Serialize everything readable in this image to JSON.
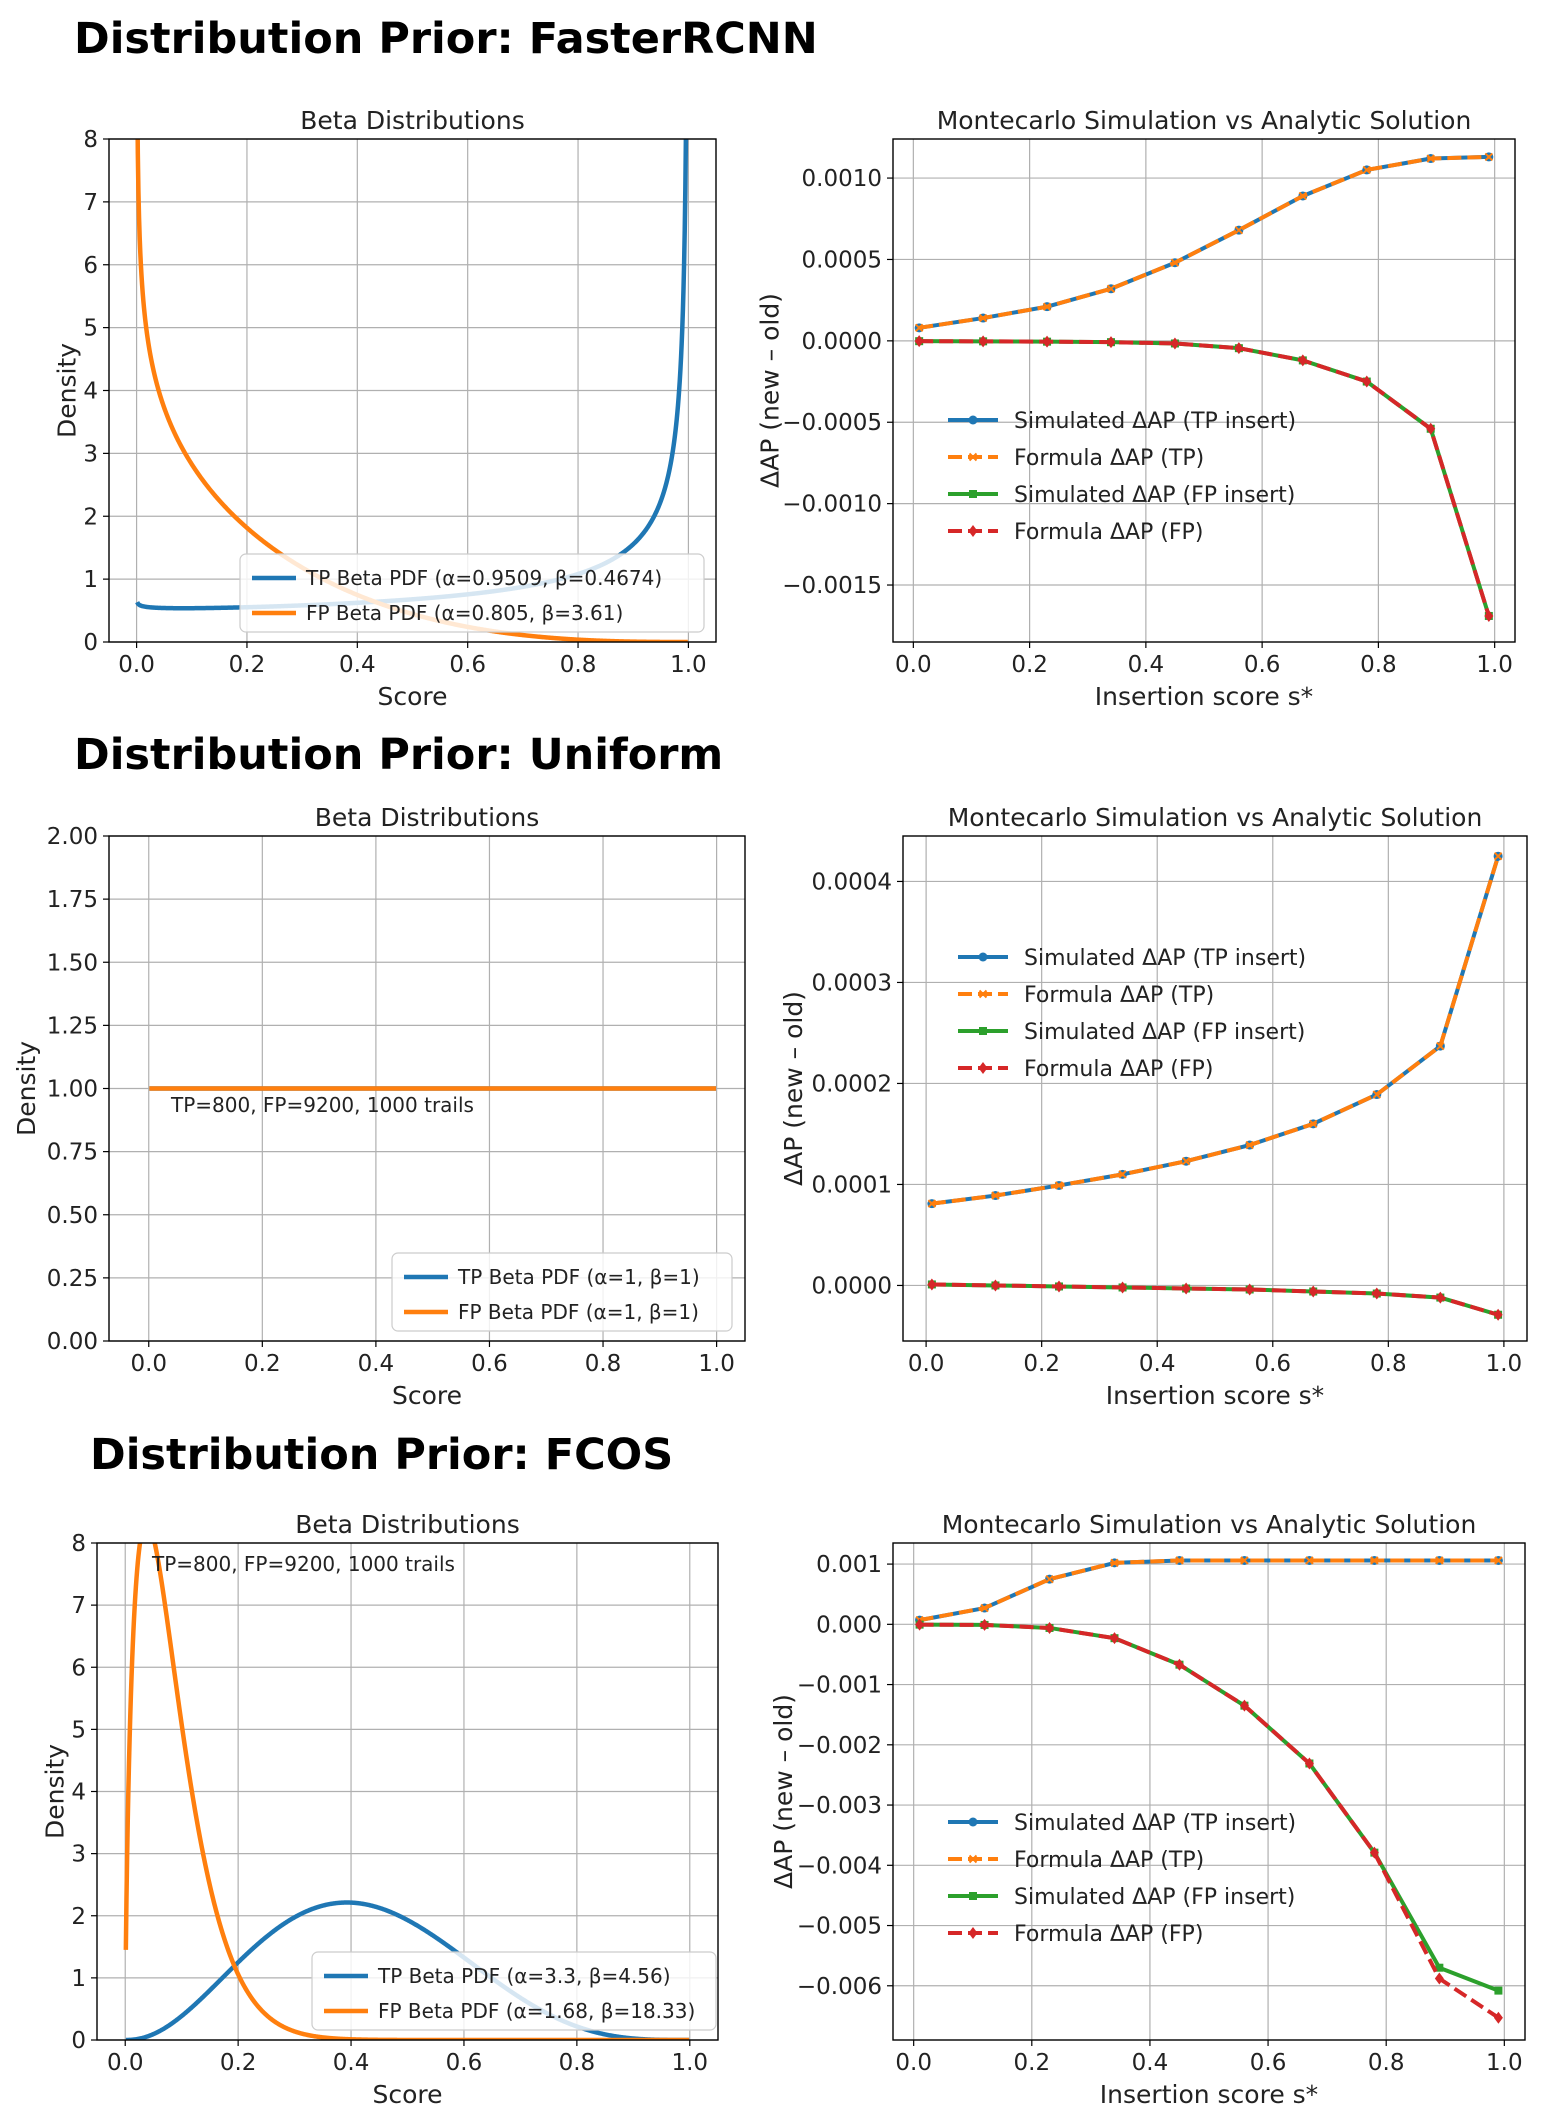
{
  "sections": [
    {
      "title": "Distribution Prior: FasterRCNN"
    },
    {
      "title": "Distribution Prior: Uniform"
    },
    {
      "title": "Distribution Prior: FCOS"
    }
  ],
  "colors": {
    "tp": "#1f77b4",
    "fp": "#ff7f0e",
    "sim_fp": "#2ca02c",
    "formula_fp": "#d62728"
  },
  "chart_data": [
    {
      "id": "frcnn-beta",
      "type": "line",
      "kind": "beta",
      "title": "Beta Distributions",
      "xlabel": "Score",
      "ylabel": "Density",
      "xlim": [
        -0.05,
        1.05
      ],
      "ylim": [
        0,
        8
      ],
      "xticks": [
        0.0,
        0.2,
        0.4,
        0.6,
        0.8,
        1.0
      ],
      "xtick_labels": [
        "0.0",
        "0.2",
        "0.4",
        "0.6",
        "0.8",
        "1.0"
      ],
      "yticks": [
        0,
        1,
        2,
        3,
        4,
        5,
        6,
        7,
        8
      ],
      "ytick_labels": [
        "0",
        "1",
        "2",
        "3",
        "4",
        "5",
        "6",
        "7",
        "8"
      ],
      "grid": true,
      "legend_position": "lower-right",
      "series": [
        {
          "name": "TP Beta PDF (α=0.9509, β=0.4674)",
          "alpha": 0.9509,
          "beta": 0.4674,
          "color": "#1f77b4"
        },
        {
          "name": "FP Beta PDF (α=0.805, β=3.61)",
          "alpha": 0.805,
          "beta": 3.61,
          "color": "#ff7f0e"
        }
      ]
    },
    {
      "id": "frcnn-mc",
      "type": "line",
      "kind": "mc",
      "title": "Montecarlo Simulation vs Analytic Solution",
      "xlabel": "Insertion score s*",
      "ylabel": "ΔAP (new – old)",
      "xlim": [
        -0.035,
        1.035
      ],
      "ylim": [
        -0.00185,
        0.00124
      ],
      "xticks": [
        0.0,
        0.2,
        0.4,
        0.6,
        0.8,
        1.0
      ],
      "xtick_labels": [
        "0.0",
        "0.2",
        "0.4",
        "0.6",
        "0.8",
        "1.0"
      ],
      "yticks": [
        -0.0015,
        -0.001,
        -0.0005,
        0,
        0.0005,
        0.001
      ],
      "ytick_labels": [
        "−0.0015",
        "−0.0010",
        "−0.0005",
        "0.0000",
        "0.0005",
        "0.0010"
      ],
      "grid": true,
      "legend_position": "center-left",
      "x": [
        0.01,
        0.12,
        0.23,
        0.34,
        0.45,
        0.56,
        0.67,
        0.78,
        0.89,
        0.99
      ],
      "series": [
        {
          "name": "Simulated ΔAP (TP insert)",
          "color": "#1f77b4",
          "style": "solid",
          "marker": "circle",
          "values": [
            8e-05,
            0.00014,
            0.00021,
            0.00032,
            0.00048,
            0.00068,
            0.00089,
            0.00105,
            0.00112,
            0.00113
          ]
        },
        {
          "name": "Formula ΔAP (TP)",
          "color": "#ff7f0e",
          "style": "dashed",
          "marker": "x",
          "values": [
            8e-05,
            0.00014,
            0.00021,
            0.00032,
            0.00048,
            0.00068,
            0.00089,
            0.00105,
            0.00112,
            0.00113
          ]
        },
        {
          "name": "Simulated ΔAP (FP insert)",
          "color": "#2ca02c",
          "style": "solid",
          "marker": "square",
          "values": [
            -2e-06,
            -3e-06,
            -5e-06,
            -8e-06,
            -1.6e-05,
            -4.5e-05,
            -0.00012,
            -0.00025,
            -0.00054,
            -0.00169
          ]
        },
        {
          "name": "Formula ΔAP (FP)",
          "color": "#d62728",
          "style": "dashed",
          "marker": "diamond",
          "values": [
            -2e-06,
            -3e-06,
            -5e-06,
            -8e-06,
            -1.6e-05,
            -4.5e-05,
            -0.00012,
            -0.00025,
            -0.00054,
            -0.00169
          ]
        }
      ]
    },
    {
      "id": "uni-beta",
      "type": "line",
      "kind": "beta",
      "title": "Beta Distributions",
      "xlabel": "Score",
      "ylabel": "Density",
      "xlim": [
        -0.07,
        1.05
      ],
      "ylim": [
        0,
        2
      ],
      "xticks": [
        0.0,
        0.2,
        0.4,
        0.6,
        0.8,
        1.0
      ],
      "xtick_labels": [
        "0.0",
        "0.2",
        "0.4",
        "0.6",
        "0.8",
        "1.0"
      ],
      "yticks": [
        0,
        0.25,
        0.5,
        0.75,
        1.0,
        1.25,
        1.5,
        1.75,
        2.0
      ],
      "ytick_labels": [
        "0.00",
        "0.25",
        "0.50",
        "0.75",
        "1.00",
        "1.25",
        "1.50",
        "1.75",
        "2.00"
      ],
      "grid": true,
      "legend_position": "lower-right",
      "annotation": "TP=800, FP=9200, 1000 trails",
      "series": [
        {
          "name": "TP Beta PDF (α=1, β=1)",
          "alpha": 1,
          "beta": 1,
          "color": "#1f77b4"
        },
        {
          "name": "FP Beta PDF (α=1, β=1)",
          "alpha": 1,
          "beta": 1,
          "color": "#ff7f0e"
        }
      ]
    },
    {
      "id": "uni-mc",
      "type": "line",
      "kind": "mc",
      "title": "Montecarlo Simulation vs Analytic Solution",
      "xlabel": "Insertion score s*",
      "ylabel": "ΔAP (new – old)",
      "xlim": [
        -0.04,
        1.04
      ],
      "ylim": [
        -5.5e-05,
        0.000445
      ],
      "xticks": [
        0.0,
        0.2,
        0.4,
        0.6,
        0.8,
        1.0
      ],
      "xtick_labels": [
        "0.0",
        "0.2",
        "0.4",
        "0.6",
        "0.8",
        "1.0"
      ],
      "yticks": [
        0,
        0.0001,
        0.0002,
        0.0003,
        0.0004
      ],
      "ytick_labels": [
        "0.0000",
        "0.0001",
        "0.0002",
        "0.0003",
        "0.0004"
      ],
      "grid": true,
      "legend_position": "upper-left",
      "x": [
        0.01,
        0.12,
        0.23,
        0.34,
        0.45,
        0.56,
        0.67,
        0.78,
        0.89,
        0.99
      ],
      "series": [
        {
          "name": "Simulated ΔAP (TP insert)",
          "color": "#1f77b4",
          "style": "solid",
          "marker": "circle",
          "values": [
            8.1e-05,
            8.9e-05,
            9.9e-05,
            0.00011,
            0.000123,
            0.000139,
            0.00016,
            0.000189,
            0.000237,
            0.000425
          ]
        },
        {
          "name": "Formula ΔAP (TP)",
          "color": "#ff7f0e",
          "style": "dashed",
          "marker": "x",
          "values": [
            8.1e-05,
            8.9e-05,
            9.9e-05,
            0.00011,
            0.000123,
            0.000139,
            0.00016,
            0.000189,
            0.000237,
            0.000425
          ]
        },
        {
          "name": "Simulated ΔAP (FP insert)",
          "color": "#2ca02c",
          "style": "solid",
          "marker": "square",
          "values": [
            1e-06,
            0.0,
            -1e-06,
            -2e-06,
            -3e-06,
            -4e-06,
            -6e-06,
            -8e-06,
            -1.2e-05,
            -2.9e-05
          ]
        },
        {
          "name": "Formula ΔAP (FP)",
          "color": "#d62728",
          "style": "dashed",
          "marker": "diamond",
          "values": [
            1e-06,
            0.0,
            -1e-06,
            -2e-06,
            -3e-06,
            -4e-06,
            -6e-06,
            -8e-06,
            -1.2e-05,
            -2.9e-05
          ]
        }
      ]
    },
    {
      "id": "fcos-beta",
      "type": "line",
      "kind": "beta",
      "title": "Beta Distributions",
      "xlabel": "Score",
      "ylabel": "Density",
      "xlim": [
        -0.05,
        1.05
      ],
      "ylim": [
        0,
        8
      ],
      "xticks": [
        0.0,
        0.2,
        0.4,
        0.6,
        0.8,
        1.0
      ],
      "xtick_labels": [
        "0.0",
        "0.2",
        "0.4",
        "0.6",
        "0.8",
        "1.0"
      ],
      "yticks": [
        0,
        1,
        2,
        3,
        4,
        5,
        6,
        7,
        8
      ],
      "ytick_labels": [
        "0",
        "1",
        "2",
        "3",
        "4",
        "5",
        "6",
        "7",
        "8"
      ],
      "grid": true,
      "legend_position": "lower-right",
      "annotation": "TP=800, FP=9200, 1000 trails",
      "series": [
        {
          "name": "TP Beta PDF (α=3.3, β=4.56)",
          "alpha": 3.3,
          "beta": 4.56,
          "color": "#1f77b4"
        },
        {
          "name": "FP Beta PDF (α=1.68, β=18.33)",
          "alpha": 1.68,
          "beta": 18.33,
          "color": "#ff7f0e"
        }
      ]
    },
    {
      "id": "fcos-mc",
      "type": "line",
      "kind": "mc",
      "title": "Montecarlo Simulation vs Analytic Solution",
      "xlabel": "Insertion score s*",
      "ylabel": "ΔAP (new – old)",
      "xlim": [
        -0.035,
        1.035
      ],
      "ylim": [
        -0.0069,
        0.00135
      ],
      "xticks": [
        0.0,
        0.2,
        0.4,
        0.6,
        0.8,
        1.0
      ],
      "xtick_labels": [
        "0.0",
        "0.2",
        "0.4",
        "0.6",
        "0.8",
        "1.0"
      ],
      "yticks": [
        -0.006,
        -0.005,
        -0.004,
        -0.003,
        -0.002,
        -0.001,
        0,
        0.001
      ],
      "ytick_labels": [
        "−0.006",
        "−0.005",
        "−0.004",
        "−0.003",
        "−0.002",
        "−0.001",
        "0.000",
        "0.001"
      ],
      "grid": true,
      "legend_position": "lower-left",
      "x": [
        0.01,
        0.12,
        0.23,
        0.34,
        0.45,
        0.56,
        0.67,
        0.78,
        0.89,
        0.99
      ],
      "series": [
        {
          "name": "Simulated ΔAP (TP insert)",
          "color": "#1f77b4",
          "style": "solid",
          "marker": "circle",
          "values": [
            7e-05,
            0.00027,
            0.00075,
            0.00102,
            0.00106,
            0.00106,
            0.00106,
            0.00106,
            0.00106,
            0.00106
          ]
        },
        {
          "name": "Formula ΔAP (TP)",
          "color": "#ff7f0e",
          "style": "dashed",
          "marker": "x",
          "values": [
            7e-05,
            0.00027,
            0.00075,
            0.00102,
            0.00106,
            0.00106,
            0.00106,
            0.00106,
            0.00106,
            0.00106
          ]
        },
        {
          "name": "Simulated ΔAP (FP insert)",
          "color": "#2ca02c",
          "style": "solid",
          "marker": "square",
          "values": [
            -5e-06,
            -1e-05,
            -6e-05,
            -0.00023,
            -0.00067,
            -0.00135,
            -0.00231,
            -0.00379,
            -0.0057,
            -0.00608
          ]
        },
        {
          "name": "Formula ΔAP (FP)",
          "color": "#d62728",
          "style": "dashed",
          "marker": "diamond",
          "values": [
            -5e-06,
            -1e-05,
            -6e-05,
            -0.00023,
            -0.00067,
            -0.00135,
            -0.00231,
            -0.00379,
            -0.00588,
            -0.00653
          ]
        }
      ]
    }
  ]
}
